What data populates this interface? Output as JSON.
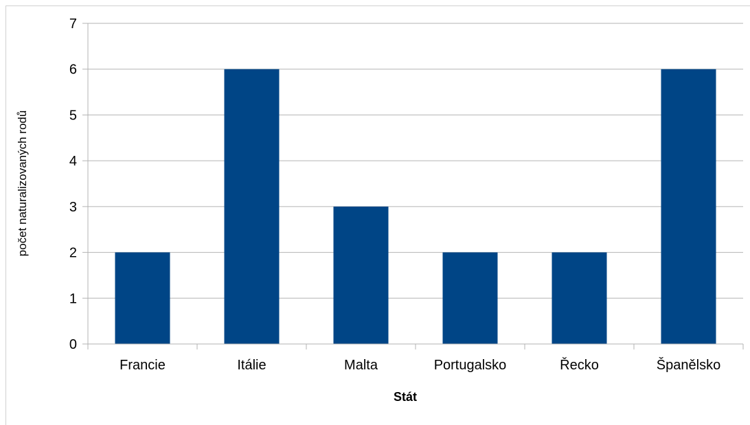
{
  "chart_data": {
    "type": "bar",
    "categories": [
      "Francie",
      "Itálie",
      "Malta",
      "Portugalsko",
      "Řecko",
      "Španělsko"
    ],
    "values": [
      2,
      6,
      3,
      2,
      2,
      6
    ],
    "title": "",
    "xlabel": "Stát",
    "ylabel": "počet naturalizovaných rodů",
    "ylim": [
      0,
      7
    ],
    "yticks": [
      0,
      1,
      2,
      3,
      4,
      5,
      6,
      7
    ],
    "grid": true,
    "legend": "none",
    "bar_color": "#004586",
    "grid_color": "#b3b3b3"
  }
}
